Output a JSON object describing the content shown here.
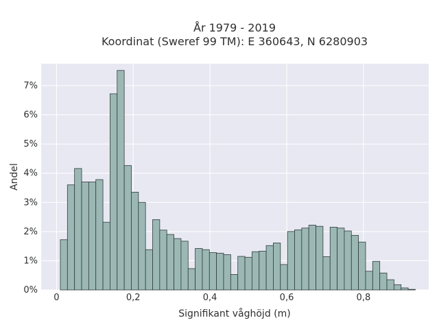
{
  "chart_data": {
    "type": "bar",
    "title_lines": [
      "År 1979 - 2019",
      "Koordinat (Sweref 99 TM): E 360643, N 6280903"
    ],
    "xlabel": "Signifikant våghöjd (m)",
    "ylabel": "Andel",
    "xlim": [
      -0.04,
      0.97
    ],
    "ylim": [
      0,
      0.0775
    ],
    "x_ticks": [
      0,
      0.2,
      0.4,
      0.6,
      0.8
    ],
    "x_tick_labels": [
      "0",
      "0,2",
      "0,4",
      "0,6",
      "0,8"
    ],
    "y_ticks": [
      0,
      0.01,
      0.02,
      0.03,
      0.04,
      0.05,
      0.06,
      0.07
    ],
    "y_tick_labels": [
      "0%",
      "1%",
      "2%",
      "3%",
      "4%",
      "5%",
      "6%",
      "7%"
    ],
    "bin_start": 0.01,
    "bin_width": 0.0185,
    "values": [
      0.0172,
      0.036,
      0.0416,
      0.037,
      0.037,
      0.0378,
      0.0232,
      0.0672,
      0.0752,
      0.0426,
      0.0335,
      0.03,
      0.0138,
      0.0241,
      0.0205,
      0.019,
      0.0176,
      0.0167,
      0.0073,
      0.0142,
      0.0138,
      0.0128,
      0.0126,
      0.0121,
      0.0053,
      0.0115,
      0.0112,
      0.0131,
      0.0133,
      0.0152,
      0.0161,
      0.0087,
      0.02,
      0.0206,
      0.0212,
      0.0222,
      0.0218,
      0.0114,
      0.0215,
      0.0212,
      0.0202,
      0.0187,
      0.0164,
      0.0064,
      0.0098,
      0.0058,
      0.0035,
      0.0018,
      0.0007,
      0.0002
    ],
    "grid": true,
    "colors": {
      "plot_bg": "#e8e8f2",
      "grid": "#ffffff",
      "bar_fill": "#9cb8b5",
      "bar_edge": "#2f3b3b"
    }
  }
}
